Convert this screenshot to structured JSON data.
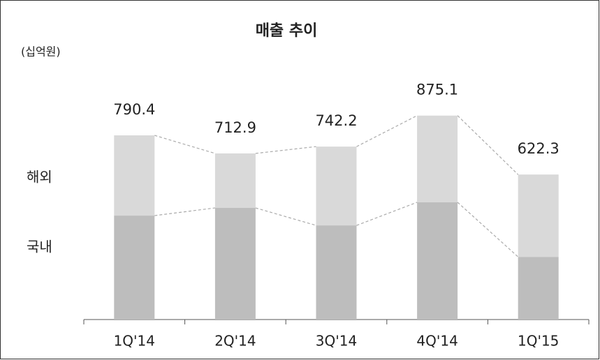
{
  "chart_data": {
    "type": "stacked_bar",
    "title": "매출 추이",
    "subtitle": "(십억원)",
    "categories": [
      "1Q'14",
      "2Q'14",
      "3Q'14",
      "4Q'14",
      "1Q'15"
    ],
    "series": [
      {
        "name": "국내",
        "color": "#bdbdbd",
        "values": [
          446,
          479,
          404,
          503,
          269
        ]
      },
      {
        "name": "해외",
        "color": "#d9d9d9",
        "values": [
          344.4,
          233.9,
          338.2,
          372.1,
          353.3
        ]
      }
    ],
    "totals": [
      790.4,
      712.9,
      742.2,
      875.1,
      622.3
    ],
    "ylim": [
      0,
      1000
    ]
  }
}
